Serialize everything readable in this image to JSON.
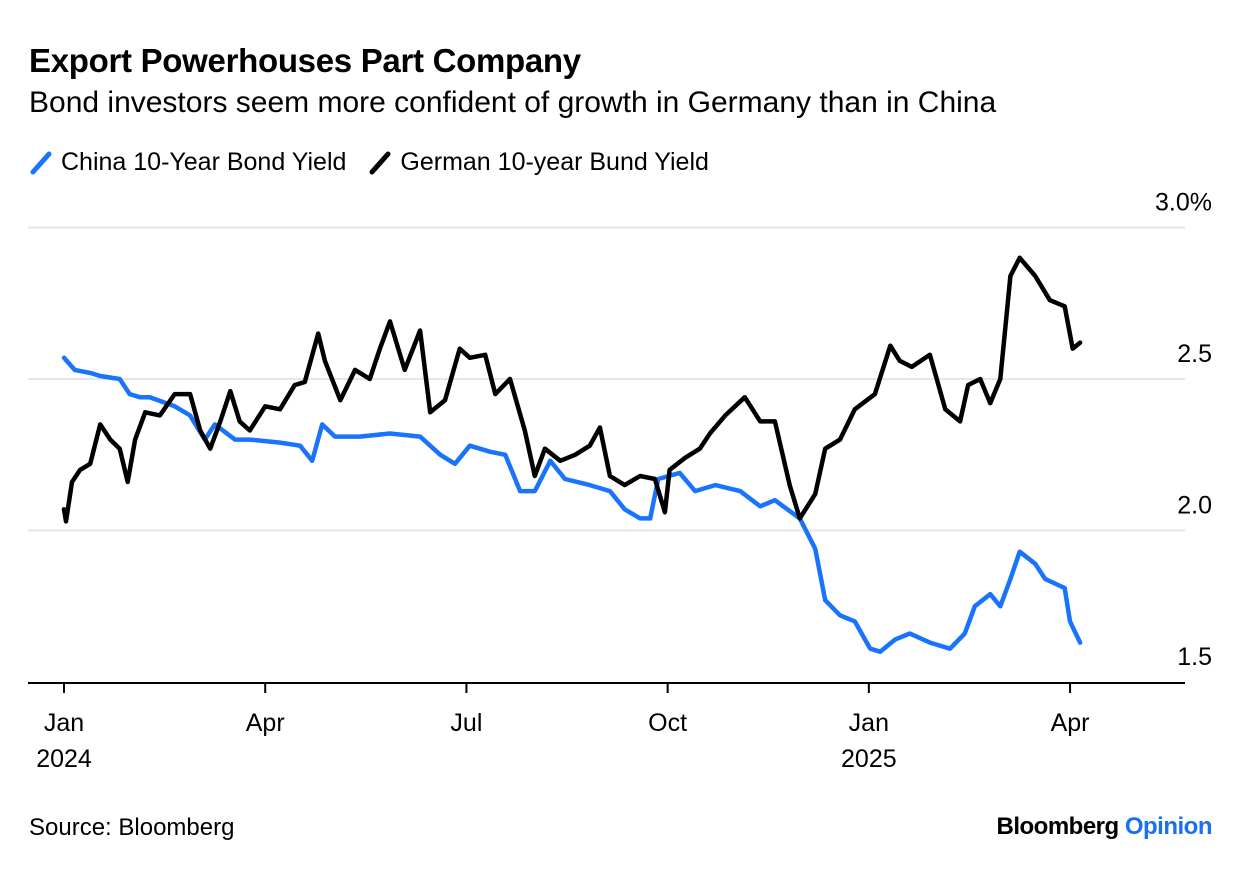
{
  "title": "Export Powerhouses Part Company",
  "subtitle": "Bond investors seem more confident of growth in Germany than in China",
  "source": "Source: Bloomberg",
  "logo": {
    "brand": "Bloomberg",
    "product": "Opinion"
  },
  "colors": {
    "china": "#1a73fb",
    "germany": "#000000",
    "grid": "#e6e6e6"
  },
  "chart_data": {
    "type": "line",
    "title": "Export Powerhouses Part Company",
    "x_unit": "months since Jan 1 2024",
    "xlabel": "",
    "ylabel": "",
    "ylim": [
      1.5,
      3.0
    ],
    "xlim": [
      0,
      15.5
    ],
    "grid": true,
    "legend_placement": "top-left",
    "y_ticks": [
      {
        "value": 3.0,
        "label": "3.0%"
      },
      {
        "value": 2.5,
        "label": "2.5"
      },
      {
        "value": 2.0,
        "label": "2.0"
      },
      {
        "value": 1.5,
        "label": "1.5"
      }
    ],
    "x_ticks": [
      {
        "value": 0,
        "label": "Jan",
        "year": "2024"
      },
      {
        "value": 3,
        "label": "Apr",
        "year": ""
      },
      {
        "value": 6,
        "label": "Jul",
        "year": ""
      },
      {
        "value": 9,
        "label": "Oct",
        "year": ""
      },
      {
        "value": 12,
        "label": "Jan",
        "year": "2025"
      },
      {
        "value": 15,
        "label": "Apr",
        "year": ""
      }
    ],
    "series": [
      {
        "name": "China 10-Year Bond Yield",
        "color": "#1a73fb",
        "x": [
          0,
          0.16,
          0.39,
          0.54,
          0.83,
          0.98,
          1.13,
          1.28,
          1.65,
          1.88,
          2.1,
          2.25,
          2.55,
          2.77,
          3.22,
          3.52,
          3.7,
          3.85,
          4.04,
          4.41,
          4.86,
          5.31,
          5.61,
          5.83,
          6.05,
          6.35,
          6.58,
          6.8,
          7.02,
          7.25,
          7.47,
          7.84,
          8.14,
          8.36,
          8.59,
          8.74,
          8.86,
          9.18,
          9.41,
          9.71,
          10.08,
          10.38,
          10.6,
          10.97,
          11.2,
          11.35,
          11.57,
          11.79,
          12.02,
          12.17,
          12.39,
          12.61,
          12.91,
          13.21,
          13.43,
          13.58,
          13.81,
          13.96,
          14.11,
          14.25,
          14.48,
          14.63,
          14.92,
          15.0,
          15.15
        ],
        "y": [
          2.57,
          2.53,
          2.52,
          2.51,
          2.5,
          2.45,
          2.44,
          2.44,
          2.41,
          2.38,
          2.3,
          2.35,
          2.3,
          2.3,
          2.29,
          2.28,
          2.23,
          2.35,
          2.31,
          2.31,
          2.32,
          2.31,
          2.25,
          2.22,
          2.28,
          2.26,
          2.25,
          2.13,
          2.13,
          2.23,
          2.17,
          2.15,
          2.13,
          2.07,
          2.04,
          2.04,
          2.17,
          2.19,
          2.13,
          2.15,
          2.13,
          2.08,
          2.1,
          2.04,
          1.94,
          1.77,
          1.72,
          1.7,
          1.61,
          1.6,
          1.64,
          1.66,
          1.63,
          1.61,
          1.66,
          1.75,
          1.79,
          1.75,
          1.84,
          1.93,
          1.89,
          1.84,
          1.81,
          1.7,
          1.63
        ]
      },
      {
        "name": "German 10-year Bund Yield",
        "color": "#000000",
        "x": [
          0,
          0.03,
          0.12,
          0.24,
          0.39,
          0.54,
          0.69,
          0.83,
          0.95,
          1.06,
          1.21,
          1.43,
          1.65,
          1.88,
          2.03,
          2.18,
          2.33,
          2.48,
          2.62,
          2.77,
          3.0,
          3.22,
          3.44,
          3.59,
          3.79,
          3.89,
          4.12,
          4.34,
          4.56,
          4.71,
          4.86,
          5.08,
          5.31,
          5.46,
          5.68,
          5.9,
          6.05,
          6.28,
          6.43,
          6.65,
          6.87,
          7.02,
          7.17,
          7.4,
          7.62,
          7.84,
          7.99,
          8.14,
          8.36,
          8.59,
          8.81,
          8.96,
          9.03,
          9.26,
          9.48,
          9.63,
          9.86,
          10.15,
          10.38,
          10.6,
          10.82,
          10.97,
          11.2,
          11.35,
          11.57,
          11.79,
          12.09,
          12.32,
          12.46,
          12.64,
          12.91,
          13.14,
          13.36,
          13.48,
          13.66,
          13.81,
          13.96,
          14.11,
          14.25,
          14.48,
          14.7,
          14.92,
          15.04,
          15.15
        ],
        "y": [
          2.07,
          2.03,
          2.16,
          2.2,
          2.22,
          2.35,
          2.3,
          2.27,
          2.16,
          2.3,
          2.39,
          2.38,
          2.45,
          2.45,
          2.33,
          2.27,
          2.36,
          2.46,
          2.36,
          2.33,
          2.41,
          2.4,
          2.48,
          2.49,
          2.65,
          2.56,
          2.43,
          2.53,
          2.5,
          2.6,
          2.69,
          2.53,
          2.66,
          2.39,
          2.43,
          2.6,
          2.57,
          2.58,
          2.45,
          2.5,
          2.33,
          2.18,
          2.27,
          2.23,
          2.25,
          2.28,
          2.34,
          2.18,
          2.15,
          2.18,
          2.17,
          2.06,
          2.2,
          2.24,
          2.27,
          2.32,
          2.38,
          2.44,
          2.36,
          2.36,
          2.15,
          2.04,
          2.12,
          2.27,
          2.3,
          2.4,
          2.45,
          2.61,
          2.56,
          2.54,
          2.58,
          2.4,
          2.36,
          2.48,
          2.5,
          2.42,
          2.5,
          2.84,
          2.9,
          2.84,
          2.76,
          2.74,
          2.6,
          2.62
        ]
      }
    ]
  }
}
